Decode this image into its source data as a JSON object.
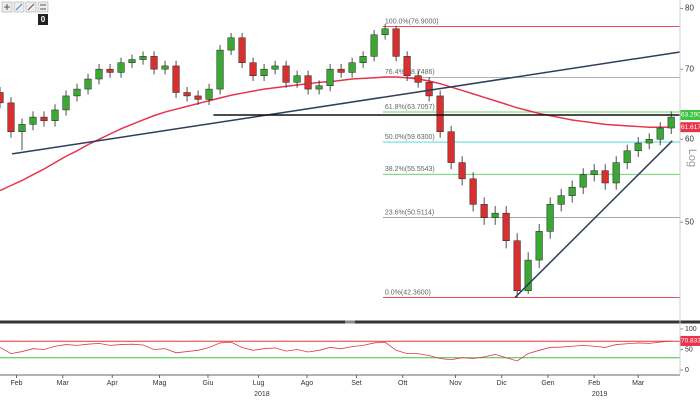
{
  "toolbar": {
    "badge": "0"
  },
  "chart_data": [
    {
      "type": "candlestick",
      "log": true,
      "xlim": [
        0,
        61.8
      ],
      "ylim": [
        40.5,
        81.5
      ],
      "yticks": [
        50,
        60,
        70,
        80
      ],
      "axis_label": "Log",
      "xticks": [
        {
          "value": 1.5,
          "label": "Feb"
        },
        {
          "value": 5.7,
          "label": "Mar"
        },
        {
          "value": 10.2,
          "label": "Apr"
        },
        {
          "value": 14.5,
          "label": "Mag"
        },
        {
          "value": 18.9,
          "label": "Giu"
        },
        {
          "value": 23.5,
          "label": "Lug"
        },
        {
          "value": 27.9,
          "label": "Ago"
        },
        {
          "value": 32.4,
          "label": "Set"
        },
        {
          "value": 36.6,
          "label": "Ott"
        },
        {
          "value": 41.4,
          "label": "Nov"
        },
        {
          "value": 45.6,
          "label": "Dic"
        },
        {
          "value": 49.8,
          "label": "Gen"
        },
        {
          "value": 54,
          "label": "Feb"
        },
        {
          "value": 58,
          "label": "Mar"
        }
      ],
      "year_labels": [
        {
          "value": 23.8,
          "label": "2018"
        },
        {
          "value": 54.5,
          "label": "2019"
        }
      ],
      "up_color": "#3aa832",
      "down_color": "#d9302f",
      "x": [
        0,
        1,
        2,
        3,
        4,
        5,
        6,
        7,
        8,
        9,
        10,
        11,
        12,
        13,
        14,
        15,
        16,
        17,
        18,
        19,
        20,
        21,
        22,
        23,
        24,
        25,
        26,
        27,
        28,
        29,
        30,
        31,
        32,
        33,
        34,
        35,
        36,
        37,
        38,
        39,
        40,
        41,
        42,
        43,
        44,
        45,
        46,
        47,
        48,
        49,
        50,
        51,
        52,
        53,
        54,
        55,
        56,
        57,
        58,
        59,
        60,
        61
      ],
      "open": [
        66.5,
        65,
        61,
        62,
        63,
        62.5,
        64,
        66,
        67,
        68.5,
        70,
        69.5,
        71,
        71.5,
        72,
        70,
        70.5,
        66.5,
        66,
        65.5,
        67,
        73,
        75,
        71,
        69,
        70,
        70.5,
        68,
        69,
        67,
        67.5,
        70,
        69.5,
        71,
        72,
        75.5,
        76.5,
        72,
        69,
        68,
        66,
        61,
        57,
        55,
        52,
        50.5,
        51,
        48,
        43,
        46,
        49,
        52,
        53,
        54,
        55.5,
        56,
        54.5,
        57,
        58.5,
        59.5,
        60,
        61.5
      ],
      "high": [
        67.3,
        65.8,
        62.8,
        63.8,
        63.8,
        64.8,
        66.8,
        67.8,
        69.3,
        70.8,
        70.8,
        71.8,
        72.3,
        72.8,
        72.8,
        71.3,
        71.3,
        67.3,
        66.8,
        67.8,
        73.8,
        75.8,
        75.8,
        71.8,
        70.8,
        71.3,
        71.3,
        69.8,
        69.8,
        68.3,
        70.8,
        70.8,
        71.8,
        72.8,
        76.3,
        77.3,
        77,
        72.8,
        69.8,
        68.8,
        66.8,
        61.8,
        57.8,
        55.8,
        52.8,
        51.8,
        51.8,
        48.8,
        46.8,
        49.8,
        52.8,
        53.8,
        54.8,
        56.3,
        56.8,
        56.8,
        57.8,
        59.3,
        60.3,
        60.8,
        62.3,
        63.8
      ],
      "low": [
        64.2,
        60.2,
        58.6,
        61.2,
        61.7,
        61.7,
        63.2,
        65.2,
        66.2,
        67.7,
        68.7,
        68.7,
        70.2,
        70.7,
        69.2,
        69.2,
        65.7,
        65.2,
        64.7,
        64.7,
        66.2,
        72.2,
        70.2,
        68.2,
        68.2,
        69.2,
        67.2,
        67.2,
        66.2,
        66.2,
        66.7,
        68.7,
        68.7,
        70.2,
        71.2,
        74.7,
        71.2,
        68.2,
        67.2,
        65.2,
        60.2,
        56.2,
        54.2,
        51.2,
        49.7,
        49.7,
        47.2,
        42.36,
        42.7,
        45.2,
        48.2,
        51.2,
        52.2,
        53.2,
        54.7,
        53.7,
        53.7,
        56.2,
        57.7,
        58.7,
        59.2,
        60.7
      ],
      "close": [
        65,
        61,
        62,
        63,
        62.5,
        64,
        66,
        67,
        68.5,
        70,
        69.5,
        71,
        71.5,
        72,
        70,
        70.5,
        66.5,
        66,
        65.5,
        67,
        73,
        75,
        71,
        69,
        70,
        70.5,
        68,
        69,
        67,
        67.5,
        70,
        69.5,
        71,
        72,
        75.5,
        76.5,
        72,
        69,
        68,
        66,
        61,
        57,
        55,
        52,
        50.5,
        51,
        48,
        43,
        46,
        49,
        52,
        53,
        54,
        55.5,
        56,
        54.5,
        57,
        58.5,
        59.5,
        60,
        61.5,
        63
      ],
      "moving_average": {
        "color": "#e8334a",
        "values": [
          53.6,
          54.2,
          54.8,
          55.5,
          56.2,
          57,
          57.8,
          58.5,
          59.3,
          60,
          60.7,
          61.4,
          62,
          62.6,
          63.2,
          63.7,
          64.1,
          64.5,
          64.9,
          65.3,
          65.7,
          66.1,
          66.4,
          66.7,
          67,
          67.2,
          67.4,
          67.6,
          67.8,
          68,
          68.1,
          68.3,
          68.5,
          68.6,
          68.7,
          68.8,
          68.8,
          68.7,
          68.5,
          68.2,
          67.8,
          67.3,
          66.8,
          66.3,
          65.8,
          65.3,
          64.8,
          64.3,
          63.9,
          63.5,
          63.2,
          62.9,
          62.6,
          62.4,
          62.2,
          62,
          61.9,
          61.8,
          61.7,
          61.6,
          61.6,
          61.617
        ]
      },
      "fib_start": 34.8,
      "fib_levels": [
        {
          "label": "100.0%(76.9000)",
          "value": 76.9,
          "color": "#e8323c"
        },
        {
          "label": "76.4%(68.7486)",
          "value": 68.7486,
          "color": "#9a9a9a"
        },
        {
          "label": "61.8%(63.7057)",
          "value": 63.7057,
          "color": "#3ec43e"
        },
        {
          "label": "50.0%(59.6300)",
          "value": 59.63,
          "color": "#38d6d6"
        },
        {
          "label": "38.2%(55.5543)",
          "value": 55.5543,
          "color": "#3ec43e"
        },
        {
          "label": "23.6%(50.5114)",
          "value": 50.5114,
          "color": "#9a9a9a"
        },
        {
          "label": "0.0%(42.3600)",
          "value": 42.36,
          "color": "#e8323c"
        }
      ],
      "trendlines": [
        {
          "x": [
            1.1,
            61.8
          ],
          "values": [
            58.1,
            72.7
          ],
          "color": "#2b3f5c"
        },
        {
          "x": [
            46.8,
            61.1
          ],
          "values": [
            42.36,
            59.8
          ],
          "color": "#2b3f5c"
        },
        {
          "x": [
            19.4,
            61.8
          ],
          "values": [
            63.29,
            63.29
          ],
          "color": "#111111"
        }
      ],
      "price_tags": [
        {
          "label": "63.2900",
          "value": 63.29,
          "color": "#3ec43e"
        },
        {
          "label": "61.6170",
          "value": 61.617,
          "color": "#e8334a"
        }
      ]
    },
    {
      "type": "line",
      "ylim": [
        0,
        100
      ],
      "yticks": [
        0,
        50,
        100
      ],
      "levels": [
        {
          "value": 70,
          "color": "#e8323c"
        },
        {
          "value": 30,
          "color": "#3ec43e"
        }
      ],
      "x": [
        0,
        1,
        2,
        3,
        4,
        5,
        6,
        7,
        8,
        9,
        10,
        11,
        12,
        13,
        14,
        15,
        16,
        17,
        18,
        19,
        20,
        21,
        22,
        23,
        24,
        25,
        26,
        27,
        28,
        29,
        30,
        31,
        32,
        33,
        34,
        35,
        36,
        37,
        38,
        39,
        40,
        41,
        42,
        43,
        44,
        45,
        46,
        47,
        48,
        49,
        50,
        51,
        52,
        53,
        54,
        55,
        56,
        57,
        58,
        59,
        60,
        61
      ],
      "series": [
        {
          "color": "#e8334a",
          "values": [
            55,
            40,
            45,
            52,
            50,
            58,
            62,
            60,
            63,
            65,
            60,
            62,
            63,
            61,
            50,
            52,
            42,
            45,
            48,
            55,
            66,
            68,
            55,
            48,
            52,
            54,
            46,
            50,
            44,
            48,
            55,
            52,
            57,
            60,
            66,
            68,
            48,
            40,
            40,
            35,
            28,
            25,
            30,
            28,
            32,
            38,
            30,
            22,
            40,
            48,
            55,
            56,
            58,
            60,
            58,
            55,
            62,
            64,
            66,
            65,
            68,
            70.8331
          ]
        }
      ],
      "price_tag": {
        "label": "70.8331",
        "value": 70.8331,
        "color": "#e8334a"
      }
    }
  ]
}
